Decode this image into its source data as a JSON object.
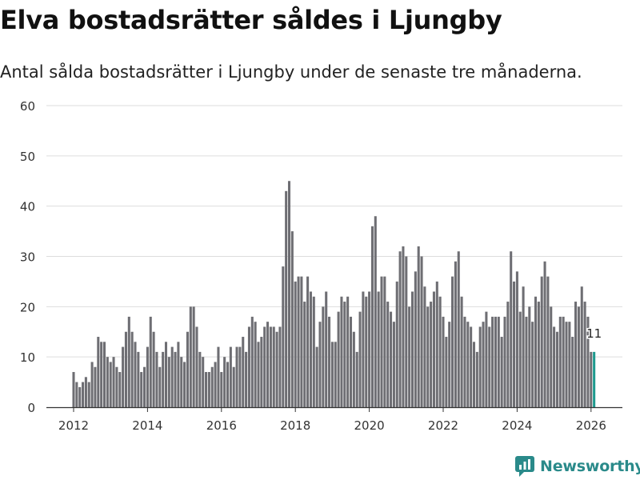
{
  "header": {
    "title": "Elva bostadsrätter såldes i Ljungby",
    "subtitle": "Antal sålda bostadsrätter i Ljungby under de senaste tre månaderna."
  },
  "brand": {
    "name": "Newsworthy",
    "color": "#2a8a8a"
  },
  "colors": {
    "bar": "#6e6e73",
    "highlight": "#1e9a8e",
    "grid": "#dddddd",
    "axis": "#333333"
  },
  "chart_data": {
    "type": "bar",
    "title": "Elva bostadsrätter såldes i Ljungby",
    "xlabel": "",
    "ylabel": "",
    "ylim": [
      0,
      60
    ],
    "yticks": [
      0,
      10,
      20,
      30,
      40,
      50,
      60
    ],
    "xticks": [
      {
        "label": "2012",
        "year": 2012
      },
      {
        "label": "2014",
        "year": 2014
      },
      {
        "label": "2016",
        "year": 2016
      },
      {
        "label": "2018",
        "year": 2018
      },
      {
        "label": "2020",
        "year": 2020
      },
      {
        "label": "2022",
        "year": 2022
      },
      {
        "label": "2024",
        "year": 2024
      },
      {
        "label": "2026",
        "year": 2026
      }
    ],
    "start": {
      "year": 2012,
      "month": 1
    },
    "interval": "month",
    "values": [
      7,
      5,
      4,
      5,
      6,
      5,
      9,
      8,
      14,
      13,
      13,
      10,
      9,
      10,
      8,
      7,
      12,
      15,
      18,
      15,
      13,
      11,
      7,
      8,
      12,
      18,
      15,
      11,
      8,
      11,
      13,
      10,
      12,
      11,
      13,
      10,
      9,
      15,
      20,
      20,
      16,
      11,
      10,
      7,
      7,
      8,
      9,
      12,
      7,
      10,
      9,
      12,
      8,
      12,
      12,
      14,
      11,
      16,
      18,
      17,
      13,
      14,
      16,
      17,
      16,
      16,
      15,
      16,
      28,
      43,
      45,
      35,
      25,
      26,
      26,
      21,
      26,
      23,
      22,
      12,
      17,
      20,
      23,
      18,
      13,
      13,
      19,
      22,
      21,
      22,
      18,
      15,
      11,
      19,
      23,
      22,
      23,
      36,
      38,
      23,
      26,
      26,
      21,
      19,
      17,
      25,
      31,
      32,
      30,
      20,
      23,
      27,
      32,
      30,
      24,
      20,
      21,
      23,
      25,
      22,
      18,
      14,
      17,
      26,
      29,
      31,
      22,
      18,
      17,
      16,
      13,
      11,
      16,
      17,
      19,
      16,
      18,
      18,
      18,
      14,
      18,
      21,
      31,
      25,
      27,
      19,
      24,
      18,
      20,
      17,
      22,
      21,
      26,
      29,
      26,
      20,
      16,
      15,
      18,
      18,
      17,
      17,
      14,
      21,
      20,
      24,
      21,
      18,
      11,
      11
    ],
    "highlight_last": true,
    "annotation": {
      "label": "11",
      "value": 11
    }
  }
}
